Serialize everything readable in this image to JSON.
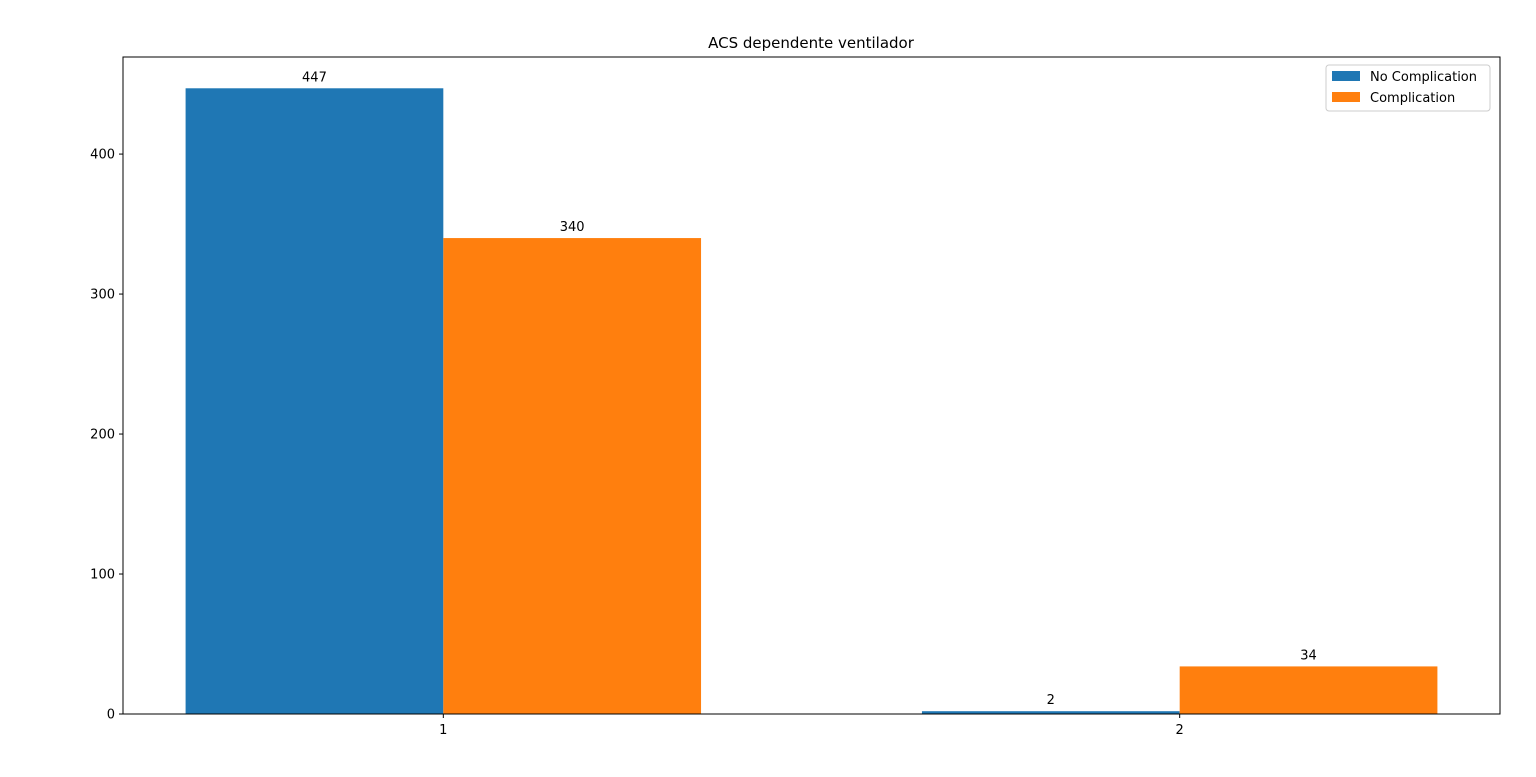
{
  "chart_data": {
    "type": "bar",
    "title": "ACS dependente ventilador",
    "xlabel": "",
    "ylabel": "",
    "categories": [
      "1",
      "2"
    ],
    "series": [
      {
        "name": "No Complication",
        "values": [
          447,
          2
        ],
        "color": "#1f77b4"
      },
      {
        "name": "Complication",
        "values": [
          340,
          34
        ],
        "color": "#ff7f0e"
      }
    ],
    "ylim": [
      0,
      469.35
    ],
    "yticks": [
      0,
      100,
      200,
      300,
      400
    ],
    "grid": false,
    "legend_position": "top-right"
  }
}
